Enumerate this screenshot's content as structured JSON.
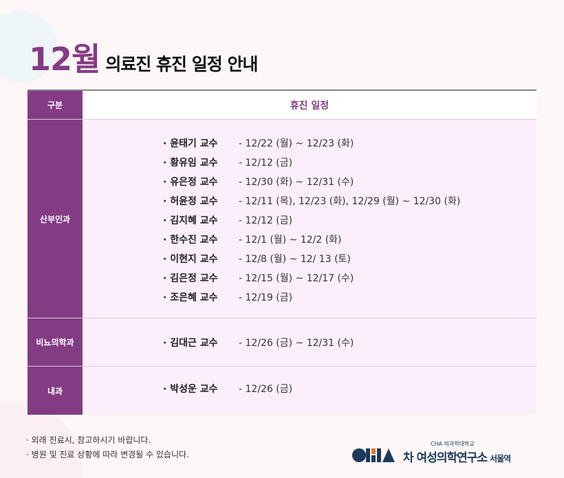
{
  "title": {
    "month": "12월",
    "rest": "의료진 휴진 일정 안내"
  },
  "table": {
    "header": {
      "category": "구분",
      "schedule": "휴진 일정"
    },
    "sections": [
      {
        "category": "산부인과",
        "entries": [
          {
            "name": "· 윤태기 교수",
            "date": "- 12/22 (월) ~ 12/23 (화)"
          },
          {
            "name": "· 황유임 교수",
            "date": "- 12/12 (금)"
          },
          {
            "name": "· 유은정 교수",
            "date": "- 12/30 (화) ~ 12/31 (수)"
          },
          {
            "name": "· 허윤정 교수",
            "date": "- 12/11 (목), 12/23 (화), 12/29 (월) ~ 12/30 (화)"
          },
          {
            "name": "· 김지혜 교수",
            "date": "- 12/12 (금)"
          },
          {
            "name": "· 한수진 교수",
            "date": "- 12/1 (월) ~ 12/2 (화)"
          },
          {
            "name": "· 이현지 교수",
            "date": "- 12/8 (월) ~ 12/ 13 (토)"
          },
          {
            "name": "· 김은정 교수",
            "date": "- 12/15 (월) ~ 12/17 (수)"
          },
          {
            "name": "· 조은혜 교수",
            "date": "- 12/19 (금)"
          }
        ]
      },
      {
        "category": "비뇨의학과",
        "entries": [
          {
            "name": "· 김대근 교수",
            "date": "-  12/26 (금) ~ 12/31 (수)"
          }
        ]
      },
      {
        "category": "내과",
        "entries": [
          {
            "name": "· 박성운 교수",
            "date": "-  12/26 (금)"
          }
        ]
      }
    ]
  },
  "notes": [
    "· 외래 진료시, 참고하시기 바랍니다.",
    "· 병원 및 진료 상황에 따라 변경될 수 있습니다."
  ],
  "logo": {
    "mark": "CHA",
    "small": "CHA 의과학대학교",
    "big": "차 여성의학연구소",
    "branch": "서울역"
  },
  "colors": {
    "accent": "#833c84",
    "background": "#faeffa",
    "logo": "#1b3a5c",
    "logo_orange": "#e8731c"
  }
}
